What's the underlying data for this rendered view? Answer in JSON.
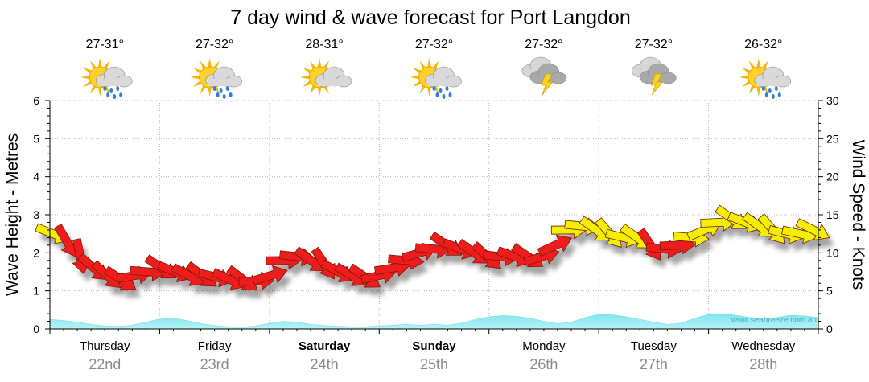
{
  "chart_data": {
    "type": "line",
    "title": "7 day wind & wave forecast for Port Langdon",
    "ylabel_left": "Wave Height - Metres",
    "ylabel_right": "Wind Speed - Knots",
    "ylim_left": [
      0,
      6
    ],
    "ylim_right": [
      0,
      30
    ],
    "yticks_left": [
      "0",
      "1",
      "2",
      "3",
      "4",
      "5",
      "6"
    ],
    "yticks_right": [
      "0",
      "5",
      "10",
      "15",
      "20",
      "25",
      "30"
    ],
    "watermark": "www.seabreeze.com.au",
    "days": [
      {
        "name": "Thursday",
        "date": "22nd",
        "temp": "27-31°",
        "weather": "sun-rain-icon",
        "bold": false
      },
      {
        "name": "Friday",
        "date": "23rd",
        "temp": "27-32°",
        "weather": "sun-rain-icon",
        "bold": false
      },
      {
        "name": "Saturday",
        "date": "24th",
        "temp": "28-31°",
        "weather": "sun-cloud-icon",
        "bold": true
      },
      {
        "name": "Sunday",
        "date": "25th",
        "temp": "27-32°",
        "weather": "sun-rain-icon",
        "bold": true
      },
      {
        "name": "Monday",
        "date": "26th",
        "temp": "27-32°",
        "weather": "storm-icon",
        "bold": false
      },
      {
        "name": "Tuesday",
        "date": "27th",
        "temp": "27-32°",
        "weather": "storm-icon",
        "bold": false
      },
      {
        "name": "Wednesday",
        "date": "28th",
        "temp": "26-32°",
        "weather": "sun-rain-icon",
        "bold": false
      }
    ],
    "wave_height_m": [
      0.25,
      0.22,
      0.18,
      0.12,
      0.08,
      0.07,
      0.1,
      0.18,
      0.26,
      0.28,
      0.22,
      0.14,
      0.09,
      0.06,
      0.05,
      0.08,
      0.15,
      0.2,
      0.18,
      0.12,
      0.09,
      0.07,
      0.06,
      0.06,
      0.08,
      0.1,
      0.12,
      0.1,
      0.12,
      0.1,
      0.15,
      0.25,
      0.32,
      0.35,
      0.33,
      0.28,
      0.2,
      0.14,
      0.18,
      0.3,
      0.38,
      0.37,
      0.32,
      0.25,
      0.18,
      0.12,
      0.15,
      0.28,
      0.38,
      0.4,
      0.36,
      0.3,
      0.25,
      0.3,
      0.36,
      0.34,
      0.3
    ],
    "wind_knots": [
      12.5,
      11.5,
      9.5,
      8,
      7,
      6.5,
      7,
      7.5,
      8,
      7.5,
      7,
      7,
      6.8,
      6.5,
      6.5,
      6.3,
      7,
      9,
      9.5,
      9,
      8.5,
      7.5,
      7,
      6.8,
      7,
      8,
      9,
      10,
      10.5,
      11,
      10.5,
      10,
      9.5,
      9.5,
      9.5,
      9.5,
      9.5,
      11,
      13,
      13.5,
      13,
      12.5,
      12,
      12,
      11,
      10.5,
      11,
      12,
      13,
      14,
      14.5,
      14,
      13.5,
      13,
      12.5,
      12.5,
      13
    ],
    "wind_color_threshold_knots": 12
  }
}
